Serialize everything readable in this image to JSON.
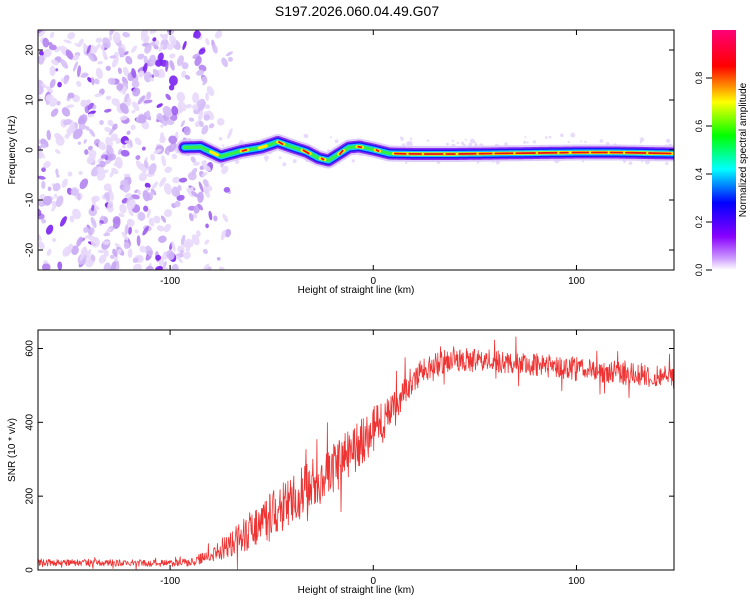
{
  "title": "S197.2026.060.04.49.G07",
  "chart_data": [
    {
      "type": "heatmap",
      "xlabel": "Height of straight line (km)",
      "ylabel": "Frequency (Hz)",
      "xlim": [
        -165,
        148
      ],
      "ylim": [
        -24,
        24
      ],
      "xticks": [
        -100,
        0,
        100
      ],
      "yticks": [
        -20,
        -10,
        0,
        10,
        20
      ],
      "xtick_labels": [
        "-100",
        "0",
        "100"
      ],
      "ytick_labels": [
        "-20",
        "-10",
        "0",
        "10",
        "20"
      ],
      "noise_region_x": [
        -165,
        -80
      ],
      "signal_start_x": -93,
      "ridge": {
        "x": [
          -93,
          -85,
          -75,
          -65,
          -55,
          -47,
          -40,
          -33,
          -27,
          -22,
          -17,
          -12,
          -7,
          0,
          8,
          20,
          40,
          60,
          80,
          100,
          120,
          148
        ],
        "y": [
          0.5,
          0.6,
          -1.3,
          -0.2,
          0.5,
          1.6,
          0.6,
          -0.3,
          -1.6,
          -2.1,
          -0.8,
          0.5,
          0.7,
          0.1,
          -0.7,
          -0.8,
          -0.8,
          -0.7,
          -0.6,
          -0.5,
          -0.5,
          -0.7
        ]
      }
    },
    {
      "type": "line",
      "xlabel": "Height of straight line (km)",
      "ylabel": "SNR (10 * v/v)",
      "xlim": [
        -165,
        148
      ],
      "ylim": [
        0,
        650
      ],
      "xticks": [
        -100,
        0,
        100
      ],
      "yticks": [
        0,
        200,
        400,
        600
      ],
      "xtick_labels": [
        "-100",
        "0",
        "100"
      ],
      "ytick_labels": [
        "0",
        "200",
        "400",
        "600"
      ],
      "color": "#ee3333",
      "series": [
        {
          "name": "SNR",
          "x": [
            -165,
            -140,
            -110,
            -90,
            -80,
            -70,
            -60,
            -50,
            -40,
            -30,
            -20,
            -10,
            0,
            10,
            15,
            20,
            30,
            40,
            60,
            80,
            100,
            120,
            148
          ],
          "values": [
            20,
            20,
            18,
            20,
            40,
            70,
            110,
            150,
            190,
            230,
            270,
            330,
            380,
            430,
            490,
            520,
            560,
            570,
            565,
            555,
            545,
            535,
            520
          ],
          "noise_amplitude": [
            10,
            10,
            10,
            12,
            20,
            40,
            60,
            70,
            75,
            80,
            80,
            75,
            70,
            60,
            50,
            40,
            35,
            35,
            35,
            35,
            35,
            35,
            35
          ]
        }
      ]
    }
  ],
  "colorbar": {
    "label": "Normalized spectral amplitude",
    "range": [
      0,
      1
    ],
    "ticks": [
      0.0,
      0.2,
      0.4,
      0.6,
      0.8
    ],
    "tick_labels": [
      "0.0",
      "0.2",
      "0.4",
      "0.6",
      "0.8"
    ],
    "colors": [
      "#ffffff",
      "#8800ff",
      "#0000ff",
      "#00ffff",
      "#00ff00",
      "#ffff00",
      "#ff0000",
      "#ff00aa"
    ]
  }
}
